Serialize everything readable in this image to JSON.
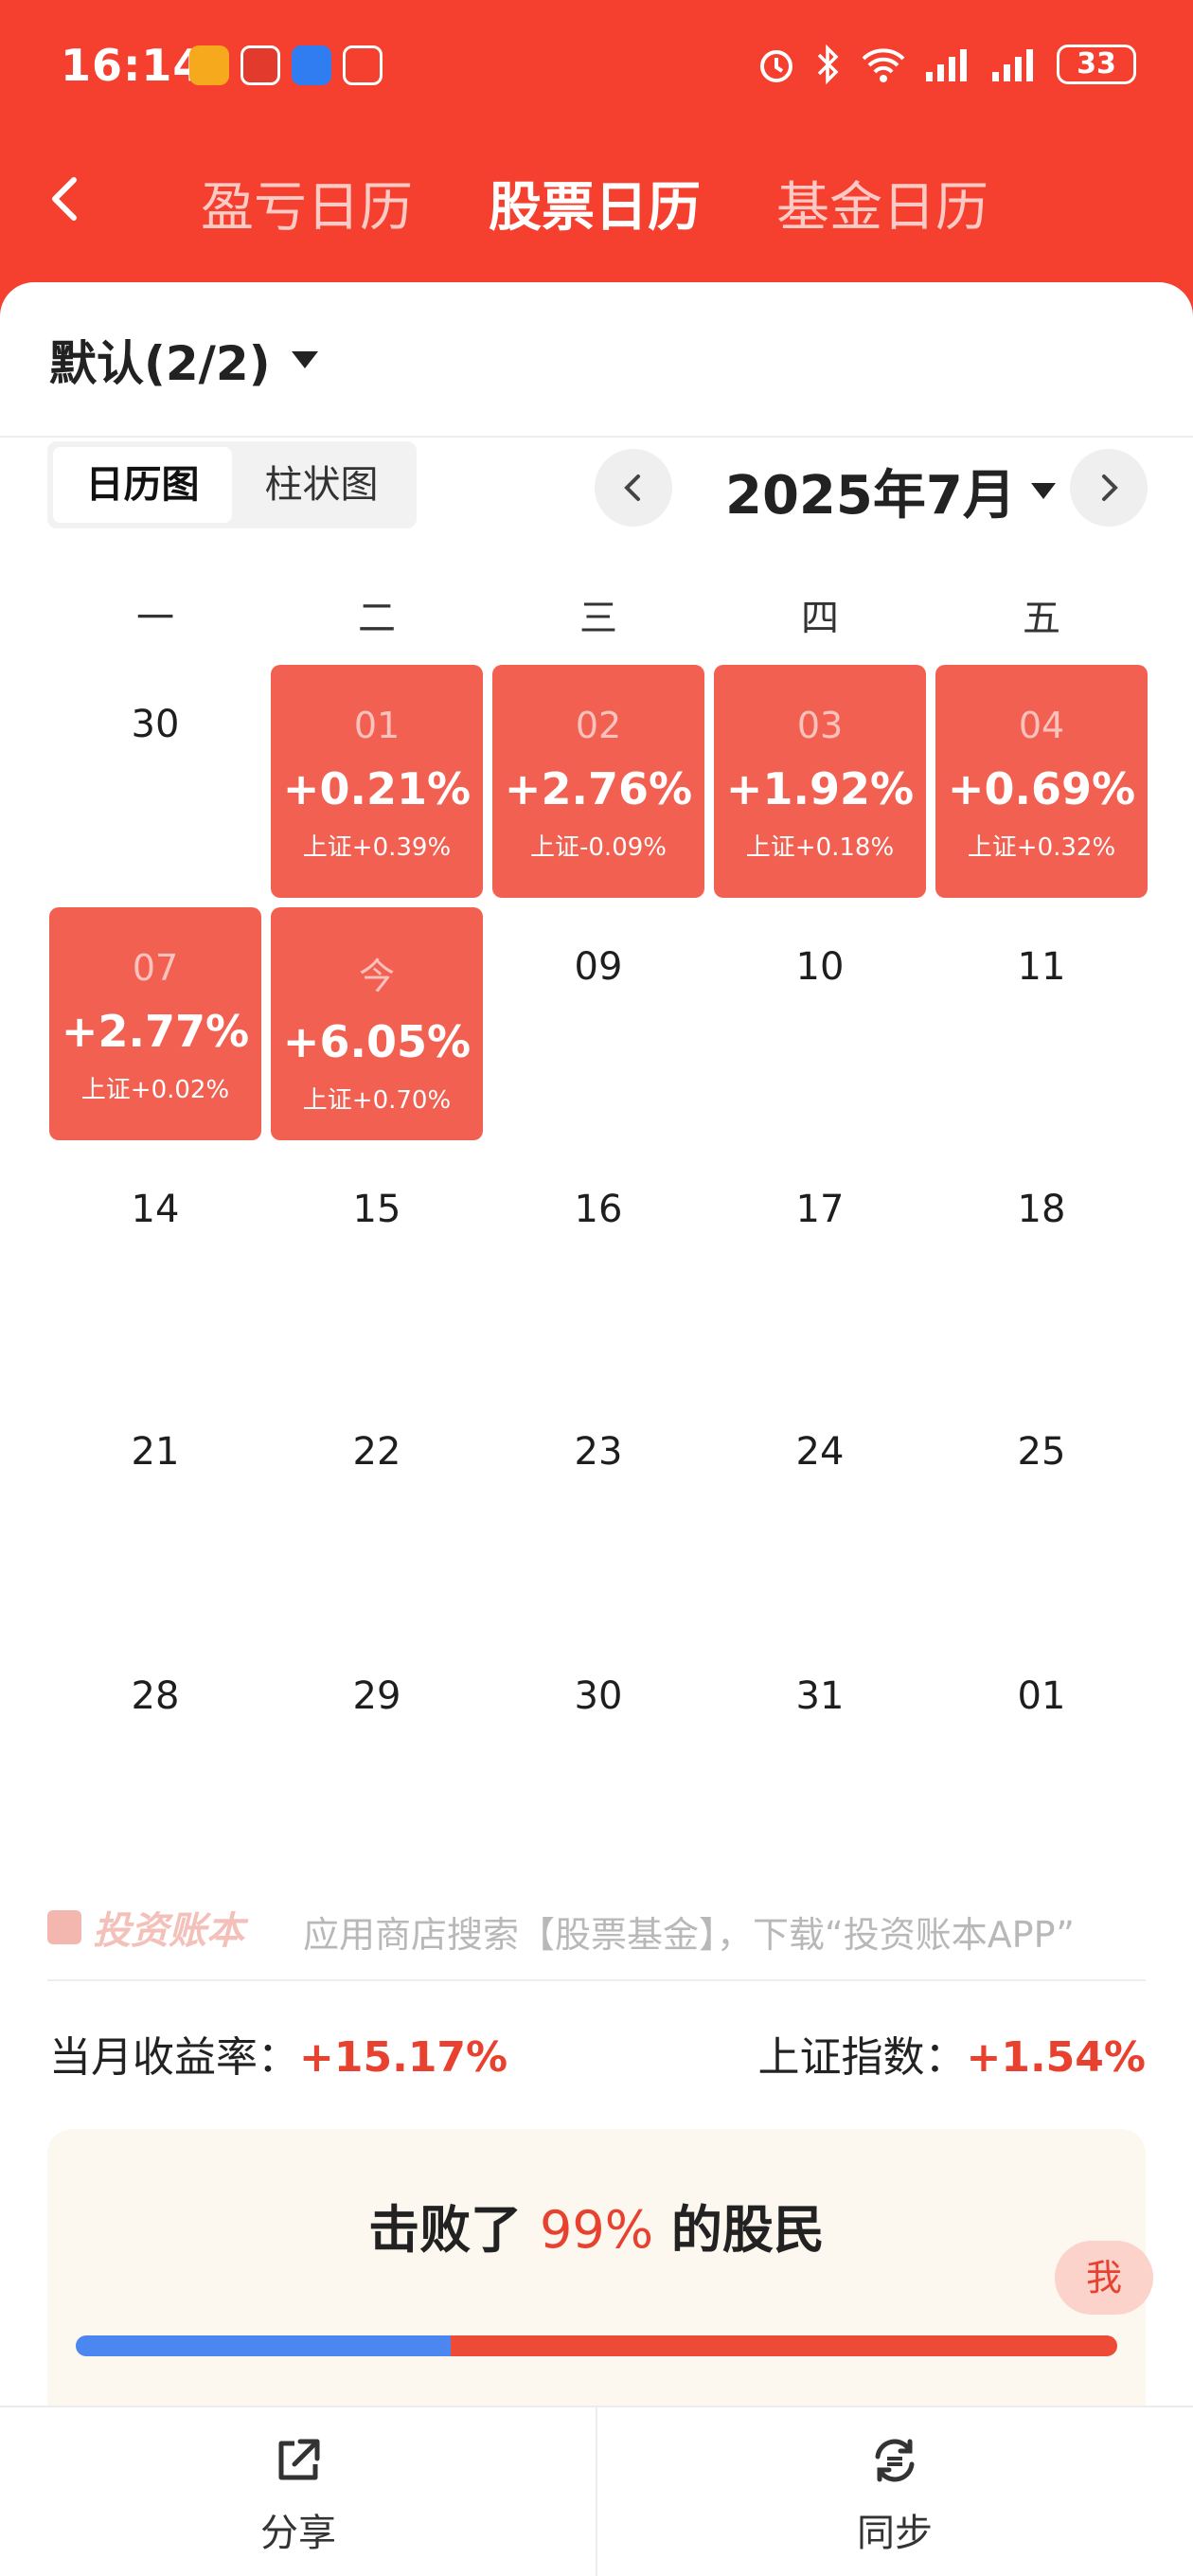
{
  "status_bar": {
    "time": "16:14",
    "battery": "33"
  },
  "nav": {
    "tabs": [
      {
        "label": "盈亏日历",
        "active": false
      },
      {
        "label": "股票日历",
        "active": true
      },
      {
        "label": "基金日历",
        "active": false
      }
    ]
  },
  "account": {
    "label": "默认(2/2)"
  },
  "view_toggle": {
    "calendar": "日历图",
    "bar": "柱状图"
  },
  "month_picker": {
    "label": "2025年7月"
  },
  "weekdays": [
    "一",
    "二",
    "三",
    "四",
    "五"
  ],
  "calendar": {
    "row1": [
      {
        "day": "30"
      },
      {
        "day": "01",
        "pct": "+0.21%",
        "index": "上证+0.39%"
      },
      {
        "day": "02",
        "pct": "+2.76%",
        "index": "上证-0.09%"
      },
      {
        "day": "03",
        "pct": "+1.92%",
        "index": "上证+0.18%"
      },
      {
        "day": "04",
        "pct": "+0.69%",
        "index": "上证+0.32%"
      }
    ],
    "row2": [
      {
        "day": "07",
        "pct": "+2.77%",
        "index": "上证+0.02%"
      },
      {
        "day": "今",
        "pct": "+6.05%",
        "index": "上证+0.70%"
      },
      {
        "day": "09"
      },
      {
        "day": "10"
      },
      {
        "day": "11"
      }
    ],
    "row3": [
      {
        "day": "14"
      },
      {
        "day": "15"
      },
      {
        "day": "16"
      },
      {
        "day": "17"
      },
      {
        "day": "18"
      }
    ],
    "row4": [
      {
        "day": "21"
      },
      {
        "day": "22"
      },
      {
        "day": "23"
      },
      {
        "day": "24"
      },
      {
        "day": "25"
      }
    ],
    "row5": [
      {
        "day": "28"
      },
      {
        "day": "29"
      },
      {
        "day": "30"
      },
      {
        "day": "31"
      },
      {
        "day": "01"
      }
    ]
  },
  "watermark": {
    "brand": "投资账本",
    "text": "应用商店搜索【股票基金】，下载“投资账本APP”"
  },
  "stats": {
    "month_return_label": "当月收益率：",
    "month_return_value": "+15.17%",
    "index_label": "上证指数：",
    "index_value": "+1.54%"
  },
  "beat": {
    "prefix": "击败了",
    "value": "99%",
    "suffix": "的股民",
    "me_label": "我",
    "blue_fraction": 0.36
  },
  "bottom": {
    "share": "分享",
    "sync": "同步"
  },
  "colors": {
    "brand_red": "#f5402f",
    "gain_cell": "#f26052",
    "accent_red": "#e8412f",
    "blue": "#4c86f0"
  }
}
